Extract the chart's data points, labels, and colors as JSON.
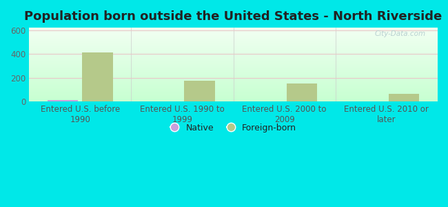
{
  "title": "Population born outside the United States - North Riverside",
  "categories": [
    "Entered U.S. before\n1990",
    "Entered U.S. 1990 to\n1999",
    "Entered U.S. 2000 to\n2009",
    "Entered U.S. 2010 or\nlater"
  ],
  "native_values": [
    15,
    0,
    0,
    0
  ],
  "foreign_values": [
    410,
    172,
    150,
    65
  ],
  "native_color": "#c9a0dc",
  "foreign_color": "#b5c98a",
  "ylim": [
    0,
    620
  ],
  "yticks": [
    0,
    200,
    400,
    600
  ],
  "outer_background": "#00e8e8",
  "grid_color": "#e8c8c8",
  "title_fontsize": 13,
  "tick_fontsize": 8.5,
  "watermark": "City-Data.com"
}
